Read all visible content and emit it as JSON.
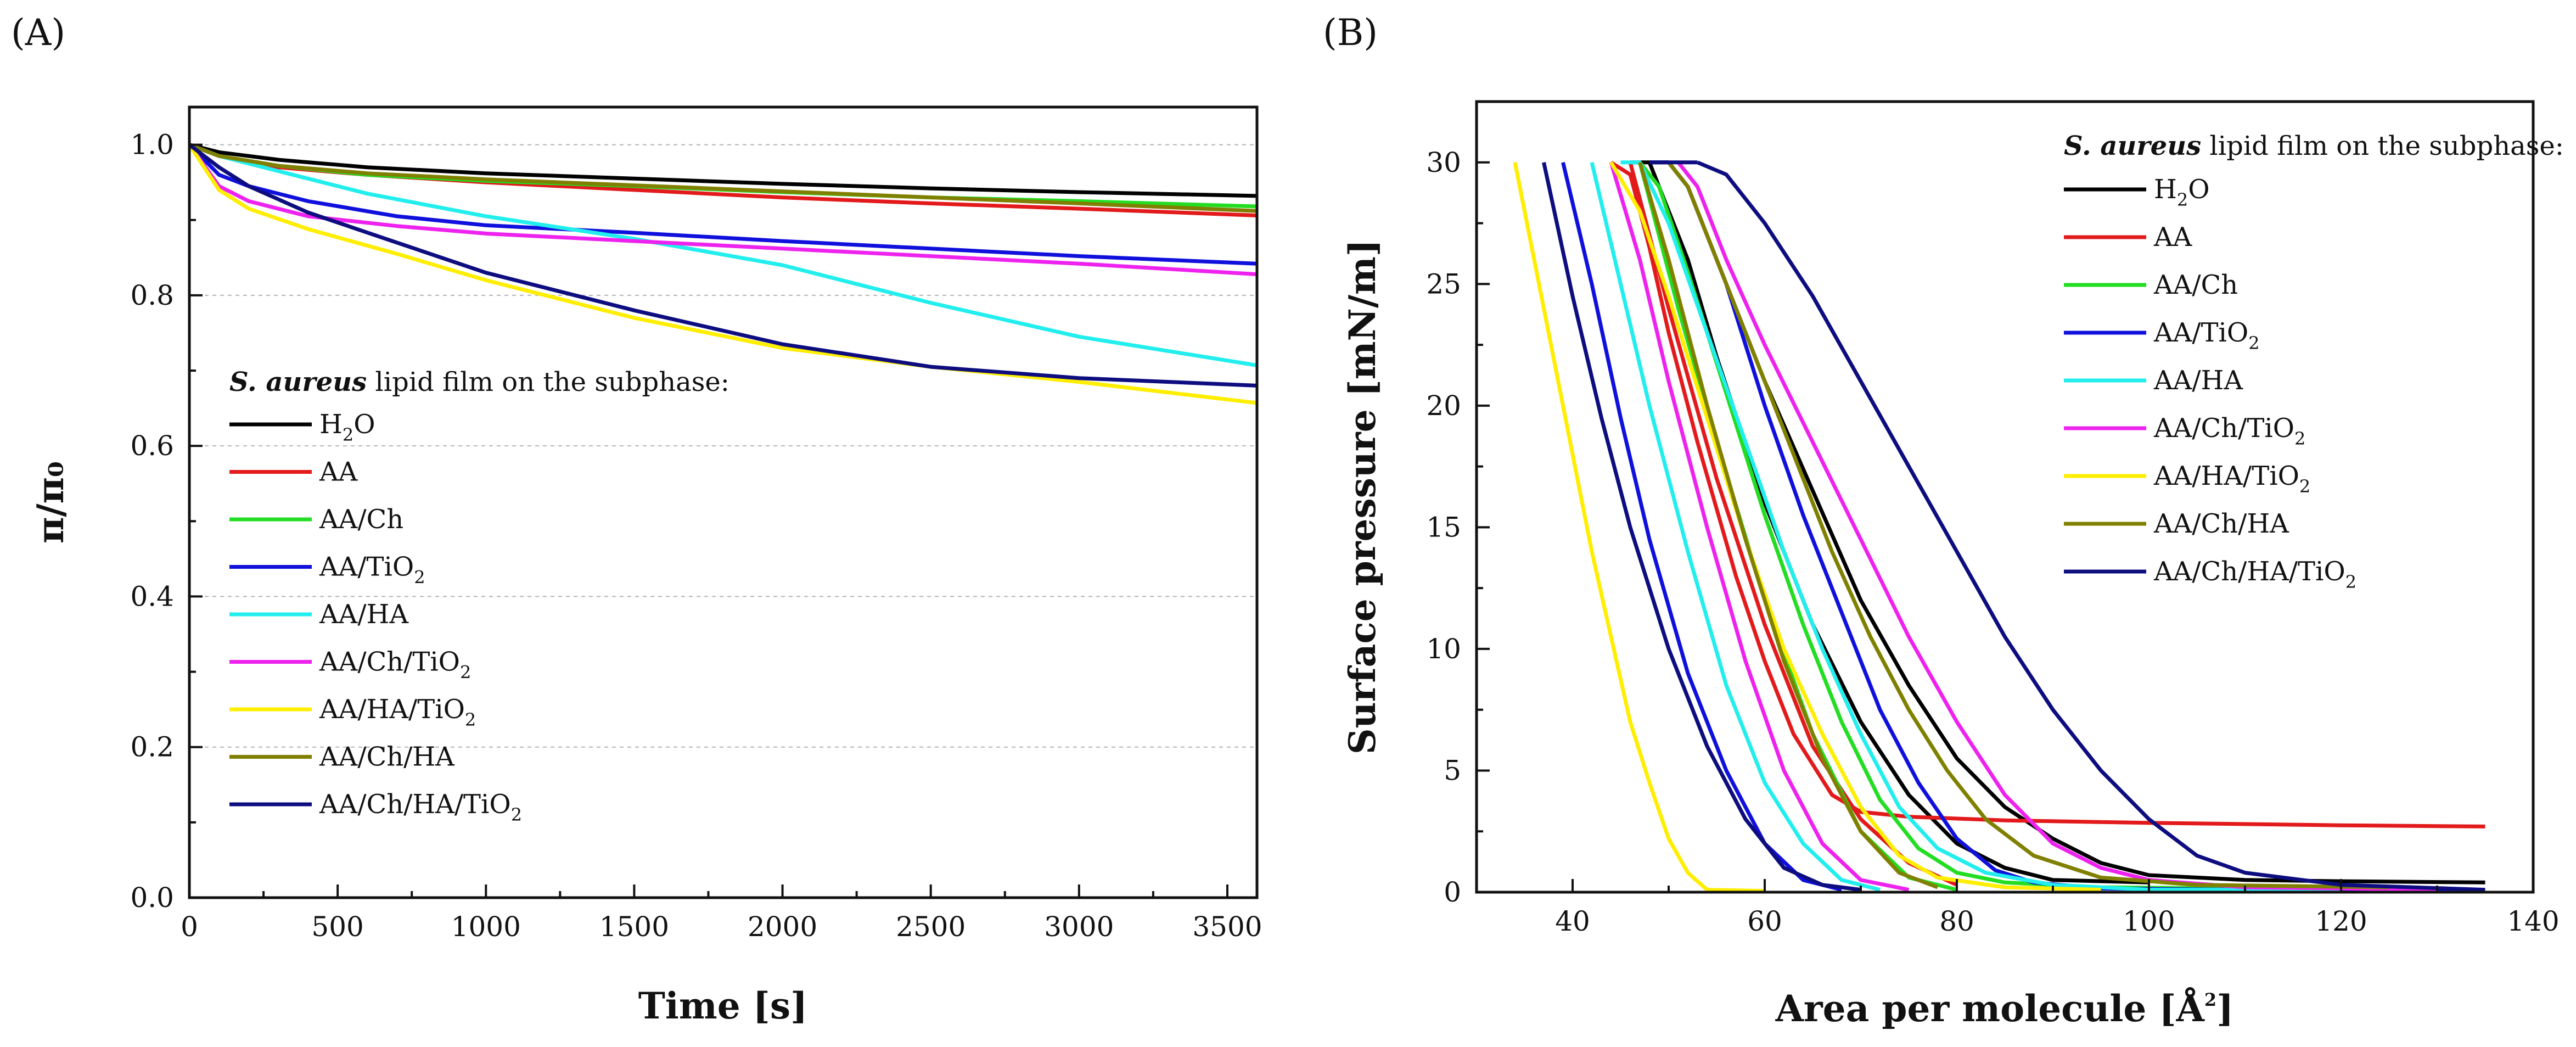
{
  "chart_data": [
    {
      "panel": "(A)",
      "type": "line",
      "xlabel": "Time [s]",
      "ylabel": "π/π₀",
      "xlim": [
        0,
        3600
      ],
      "ylim": [
        0,
        1.05
      ],
      "xticks": [
        0,
        500,
        1000,
        1500,
        2000,
        2500,
        3000,
        3500
      ],
      "yticks": [
        0.0,
        0.2,
        0.4,
        0.6,
        0.8,
        1.0
      ],
      "xtick_labels": [
        "0",
        "500",
        "1000",
        "1500",
        "2000",
        "2500",
        "3000",
        "3500"
      ],
      "ytick_labels": [
        "0.0",
        "0.2",
        "0.4",
        "0.6",
        "0.8",
        "1.0"
      ],
      "grid": "horizontal dashed",
      "legend_title_em": "S. aureus",
      "legend_title_rest": " lipid film on the subphase:",
      "series": [
        {
          "name": "H2O",
          "label": "H",
          "sub": "2",
          "label_tail": "O",
          "color": "#000000",
          "x": [
            0,
            100,
            300,
            600,
            1000,
            1500,
            2000,
            2500,
            3000,
            3600
          ],
          "y": [
            1.0,
            0.99,
            0.98,
            0.97,
            0.962,
            0.955,
            0.948,
            0.942,
            0.937,
            0.932
          ]
        },
        {
          "name": "AA",
          "label": "AA",
          "sub": "",
          "label_tail": "",
          "color": "#e31a1c",
          "x": [
            0,
            100,
            300,
            600,
            1000,
            1500,
            2000,
            2500,
            3000,
            3600
          ],
          "y": [
            1.0,
            0.985,
            0.97,
            0.96,
            0.95,
            0.94,
            0.93,
            0.922,
            0.915,
            0.906
          ]
        },
        {
          "name": "AA/Ch",
          "label": "AA/Ch",
          "sub": "",
          "label_tail": "",
          "color": "#22dd22",
          "x": [
            0,
            100,
            300,
            600,
            1000,
            1500,
            2000,
            2500,
            3000,
            3600
          ],
          "y": [
            1.0,
            0.985,
            0.972,
            0.96,
            0.952,
            0.945,
            0.937,
            0.93,
            0.925,
            0.918
          ]
        },
        {
          "name": "AA/TiO2",
          "label": "AA/TiO",
          "sub": "2",
          "label_tail": "",
          "color": "#1010dd",
          "x": [
            0,
            100,
            200,
            400,
            700,
            1000,
            1500,
            2000,
            2500,
            3000,
            3600
          ],
          "y": [
            1.0,
            0.96,
            0.945,
            0.925,
            0.905,
            0.893,
            0.883,
            0.872,
            0.862,
            0.852,
            0.842
          ]
        },
        {
          "name": "AA/HA",
          "label": "AA/HA",
          "sub": "",
          "label_tail": "",
          "color": "#22eeee",
          "x": [
            0,
            100,
            300,
            600,
            1000,
            1500,
            2000,
            2500,
            3000,
            3600
          ],
          "y": [
            1.0,
            0.985,
            0.965,
            0.935,
            0.905,
            0.875,
            0.84,
            0.79,
            0.745,
            0.707
          ]
        },
        {
          "name": "AA/Ch/TiO2",
          "label": "AA/Ch/TiO",
          "sub": "2",
          "label_tail": "",
          "color": "#ee22ee",
          "x": [
            0,
            100,
            200,
            400,
            700,
            1000,
            1500,
            2000,
            2500,
            3000,
            3600
          ],
          "y": [
            1.0,
            0.945,
            0.925,
            0.905,
            0.892,
            0.882,
            0.872,
            0.862,
            0.852,
            0.842,
            0.828
          ]
        },
        {
          "name": "AA/HA/TiO2",
          "label": "AA/HA/TiO",
          "sub": "2",
          "label_tail": "",
          "color": "#ffee00",
          "x": [
            0,
            100,
            200,
            400,
            700,
            1000,
            1500,
            2000,
            2500,
            3000,
            3600
          ],
          "y": [
            1.0,
            0.94,
            0.915,
            0.888,
            0.855,
            0.82,
            0.77,
            0.73,
            0.705,
            0.685,
            0.657
          ]
        },
        {
          "name": "AA/Ch/HA",
          "label": "AA/Ch/HA",
          "sub": "",
          "label_tail": "",
          "color": "#808000",
          "x": [
            0,
            100,
            300,
            600,
            1000,
            1500,
            2000,
            2500,
            3000,
            3600
          ],
          "y": [
            1.0,
            0.985,
            0.972,
            0.962,
            0.954,
            0.946,
            0.938,
            0.93,
            0.922,
            0.912
          ]
        },
        {
          "name": "AA/Ch/HA/TiO2",
          "label": "AA/Ch/HA/TiO",
          "sub": "2",
          "label_tail": "",
          "color": "#0d0d80",
          "x": [
            0,
            100,
            200,
            400,
            700,
            1000,
            1500,
            2000,
            2500,
            3000,
            3600
          ],
          "y": [
            1.0,
            0.97,
            0.945,
            0.91,
            0.87,
            0.83,
            0.78,
            0.735,
            0.705,
            0.69,
            0.68
          ]
        }
      ]
    },
    {
      "panel": "(B)",
      "type": "line",
      "xlabel": "Area per molecule [Å",
      "xlabel_sup": "2",
      "xlabel_tail": "]",
      "ylabel": "Surface pressure [mN/m]",
      "xlim": [
        30,
        140
      ],
      "ylim": [
        0,
        32.5
      ],
      "xticks": [
        40,
        60,
        80,
        100,
        120,
        140
      ],
      "yticks": [
        0,
        5,
        10,
        15,
        20,
        25,
        30
      ],
      "xtick_labels": [
        "40",
        "60",
        "80",
        "100",
        "120",
        "140"
      ],
      "ytick_labels": [
        "0",
        "5",
        "10",
        "15",
        "20",
        "25",
        "30"
      ],
      "legend_title_em": "S. aureus",
      "legend_title_rest": " lipid film on the subphase:",
      "series": [
        {
          "name": "H2O",
          "label": "H",
          "sub": "2",
          "label_tail": "O",
          "color": "#000000",
          "cycles": [
            {
              "x": [
                135,
                120,
                110,
                100,
                95,
                90,
                85,
                80,
                75,
                70,
                65,
                60,
                55,
                52,
                50,
                48,
                46
              ],
              "y": [
                0.4,
                0.45,
                0.5,
                0.7,
                1.2,
                2.2,
                3.5,
                5.5,
                8.5,
                12,
                16.5,
                21,
                26,
                29,
                30,
                30,
                30
              ]
            },
            {
              "x": [
                48,
                52,
                55,
                60,
                65,
                70,
                75,
                80,
                85,
                90,
                100
              ],
              "y": [
                30,
                26,
                22,
                16,
                11,
                7,
                4,
                2,
                1,
                0.5,
                0.4
              ]
            }
          ]
        },
        {
          "name": "AA",
          "label": "AA",
          "sub": "",
          "label_tail": "",
          "color": "#e31a1c",
          "cycles": [
            {
              "x": [
                135,
                120,
                100,
                85,
                75,
                70,
                67,
                63,
                60,
                57,
                53,
                50,
                48,
                46,
                44
              ],
              "y": [
                2.7,
                2.75,
                2.85,
                2.95,
                3.1,
                3.3,
                4.0,
                6.5,
                9.5,
                13,
                18.5,
                23,
                26.5,
                29.5,
                30
              ]
            },
            {
              "x": [
                46,
                50,
                55,
                60,
                65,
                70,
                75,
                80
              ],
              "y": [
                30,
                24,
                17,
                11,
                6,
                3,
                1.2,
                0.3
              ]
            }
          ]
        },
        {
          "name": "AA/Ch",
          "label": "AA/Ch",
          "sub": "",
          "label_tail": "",
          "color": "#22dd22",
          "cycles": [
            {
              "x": [
                130,
                110,
                95,
                85,
                80,
                76,
                72,
                68,
                64,
                60,
                56,
                52,
                49,
                47
              ],
              "y": [
                0.1,
                0.15,
                0.2,
                0.4,
                0.8,
                1.8,
                3.8,
                7,
                11,
                15.5,
                20.5,
                25.5,
                29,
                30
              ]
            },
            {
              "x": [
                47,
                51,
                55,
                60,
                65,
                70,
                75,
                80
              ],
              "y": [
                30,
                24,
                18.5,
                12,
                6.5,
                2.5,
                0.6,
                0.1
              ]
            }
          ]
        },
        {
          "name": "AA/TiO2",
          "label": "AA/TiO",
          "sub": "2",
          "label_tail": "",
          "color": "#1010dd",
          "cycles": [
            {
              "x": [
                135,
                110,
                95,
                88,
                84,
                80,
                76,
                72,
                68,
                64,
                60,
                56,
                52,
                50,
                48
              ],
              "y": [
                0.1,
                0.1,
                0.15,
                0.4,
                0.9,
                2.2,
                4.5,
                7.5,
                11.5,
                15.5,
                20,
                25,
                29,
                30,
                30
              ]
            },
            {
              "x": [
                39,
                42,
                45,
                48,
                52,
                56,
                60,
                64,
                68
              ],
              "y": [
                30,
                25,
                19.5,
                14.5,
                9,
                5,
                2,
                0.5,
                0.1
              ]
            }
          ]
        },
        {
          "name": "AA/HA",
          "label": "AA/HA",
          "sub": "",
          "label_tail": "",
          "color": "#22eeee",
          "cycles": [
            {
              "x": [
                120,
                100,
                90,
                83,
                78,
                74,
                70,
                66,
                62,
                58,
                54,
                50,
                47,
                45
              ],
              "y": [
                0.1,
                0.1,
                0.3,
                0.8,
                1.8,
                3.5,
                6.5,
                10,
                14,
                18.5,
                23,
                27.5,
                30,
                30
              ]
            },
            {
              "x": [
                42,
                45,
                48,
                52,
                56,
                60,
                64,
                68,
                72
              ],
              "y": [
                30,
                25,
                20,
                14,
                8.5,
                4.5,
                2,
                0.5,
                0.1
              ]
            }
          ]
        },
        {
          "name": "AA/Ch/TiO2",
          "label": "AA/Ch/TiO",
          "sub": "2",
          "label_tail": "",
          "color": "#ee22ee",
          "cycles": [
            {
              "x": [
                130,
                110,
                100,
                95,
                90,
                85,
                80,
                75,
                70,
                65,
                60,
                56,
                53,
                51
              ],
              "y": [
                0.1,
                0.2,
                0.5,
                1.0,
                2.0,
                4.0,
                7.0,
                10.5,
                14.5,
                18.5,
                22.5,
                26,
                29,
                30
              ]
            },
            {
              "x": [
                44,
                47,
                50,
                54,
                58,
                62,
                66,
                70,
                75
              ],
              "y": [
                30,
                26,
                21,
                15,
                9.5,
                5,
                2,
                0.5,
                0.1
              ]
            }
          ]
        },
        {
          "name": "AA/HA/TiO2",
          "label": "AA/HA/TiO",
          "sub": "2",
          "label_tail": "",
          "color": "#ffee00",
          "cycles": [
            {
              "x": [
                95,
                85,
                78,
                74,
                70,
                66,
                62,
                58,
                54,
                50,
                47,
                44
              ],
              "y": [
                0.1,
                0.2,
                0.6,
                1.5,
                3.5,
                6.5,
                10,
                14.5,
                19.5,
                24.5,
                28,
                30
              ]
            },
            {
              "x": [
                34,
                36,
                38,
                40,
                42,
                44,
                46,
                48,
                50,
                52,
                54,
                60
              ],
              "y": [
                30,
                26,
                22,
                18,
                14,
                10.5,
                7,
                4.5,
                2.2,
                0.8,
                0.1,
                0.05
              ]
            }
          ]
        },
        {
          "name": "AA/Ch/HA",
          "label": "AA/Ch/HA",
          "sub": "",
          "label_tail": "",
          "color": "#808000",
          "cycles": [
            {
              "x": [
                125,
                105,
                95,
                88,
                83,
                79,
                75,
                71,
                67,
                63,
                59,
                55,
                52,
                50
              ],
              "y": [
                0.2,
                0.3,
                0.6,
                1.5,
                3,
                5,
                7.5,
                10.5,
                14,
                18,
                22,
                26,
                29,
                30
              ]
            },
            {
              "x": [
                47,
                50,
                54,
                58,
                62,
                66,
                70,
                74,
                78
              ],
              "y": [
                30,
                26,
                20,
                14.5,
                9.5,
                5.5,
                2.5,
                0.8,
                0.2
              ]
            }
          ]
        },
        {
          "name": "AA/Ch/HA/TiO2",
          "label": "AA/Ch/HA/TiO",
          "sub": "2",
          "label_tail": "",
          "color": "#0d0d80",
          "cycles": [
            {
              "x": [
                135,
                120,
                110,
                105,
                100,
                95,
                90,
                85,
                80,
                75,
                70,
                65,
                60,
                56,
                53
              ],
              "y": [
                0.1,
                0.3,
                0.8,
                1.5,
                3,
                5,
                7.5,
                10.5,
                14,
                17.5,
                21,
                24.5,
                27.5,
                29.5,
                30
              ]
            },
            {
              "x": [
                53,
                50,
                48
              ],
              "y": [
                30,
                30,
                30
              ]
            },
            {
              "x": [
                37,
                40,
                43,
                46,
                50,
                54,
                58,
                62,
                66,
                70
              ],
              "y": [
                30,
                24.5,
                19.5,
                15,
                10,
                6,
                3,
                1,
                0.3,
                0.1
              ]
            }
          ]
        }
      ]
    }
  ]
}
